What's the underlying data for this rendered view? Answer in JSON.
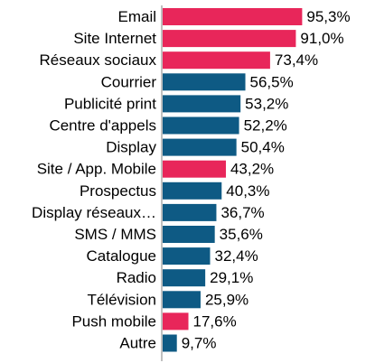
{
  "chart_data": {
    "type": "bar",
    "orientation": "horizontal",
    "categories": [
      "Email",
      "Site Internet",
      "Réseaux sociaux",
      "Courrier",
      "Publicité print",
      "Centre d'appels",
      "Display",
      "Site  / App. Mobile",
      "Prospectus",
      "Display réseaux…",
      "SMS / MMS",
      "Catalogue",
      "Radio",
      "Télévision",
      "Push mobile",
      "Autre"
    ],
    "values": [
      95.3,
      91.0,
      73.4,
      56.5,
      53.2,
      52.2,
      50.4,
      43.2,
      40.3,
      36.7,
      35.6,
      32.4,
      29.1,
      25.9,
      17.6,
      9.7
    ],
    "value_labels": [
      "95,3%",
      "91,0%",
      "73,4%",
      "56,5%",
      "53,2%",
      "52,2%",
      "50,4%",
      "43,2%",
      "40,3%",
      "36,7%",
      "35,6%",
      "32,4%",
      "29,1%",
      "25,9%",
      "17,6%",
      "9,7%"
    ],
    "highlighted": [
      true,
      true,
      true,
      false,
      false,
      false,
      false,
      true,
      false,
      false,
      false,
      false,
      false,
      false,
      true,
      false
    ],
    "xlim": [
      0,
      100
    ],
    "colors": {
      "highlight": "#e8265a",
      "default": "#0e5a84",
      "axis": "#808080"
    },
    "grid": false,
    "title": "",
    "xlabel": "",
    "ylabel": ""
  }
}
